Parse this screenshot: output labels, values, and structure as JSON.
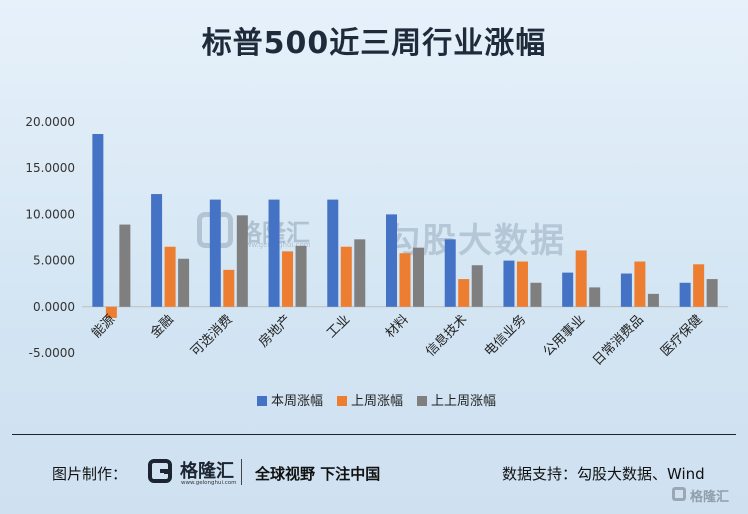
{
  "title": "标普500近三周行业涨幅",
  "watermark": {
    "logo_text": "格隆汇",
    "logo_sub": "www.gelonghui.com",
    "text": "勾股大数据"
  },
  "footer": {
    "credit_label": "图片制作：",
    "logo_text": "格隆汇",
    "logo_url": "www.gelonghui.com",
    "slogan": "全球视野 下注中国",
    "source": "数据支持：勾股大数据、Wind",
    "corner_text": "格隆汇"
  },
  "colors": {
    "series": [
      "#4472c4",
      "#ed7d31",
      "#7f7f7f"
    ]
  },
  "chart_data": {
    "type": "bar",
    "title": "标普500近三周行业涨幅",
    "categories": [
      "能源",
      "金融",
      "可选消费",
      "房地产",
      "工业",
      "材料",
      "信息技术",
      "电信业务",
      "公用事业",
      "日常消费品",
      "医疗保健"
    ],
    "series": [
      {
        "name": "本周涨幅",
        "values": [
          18.7,
          12.2,
          11.6,
          11.6,
          11.6,
          10.0,
          7.3,
          5.0,
          3.7,
          3.6,
          2.6
        ]
      },
      {
        "name": "上周涨幅",
        "values": [
          -1.2,
          6.5,
          4.0,
          6.0,
          6.5,
          5.8,
          3.0,
          4.9,
          6.1,
          4.9,
          4.6
        ]
      },
      {
        "name": "上上周涨幅",
        "values": [
          8.9,
          5.2,
          9.9,
          6.6,
          7.3,
          6.4,
          4.5,
          2.6,
          2.1,
          1.4,
          3.0
        ]
      }
    ],
    "yticks": [
      "20.0000",
      "15.0000",
      "10.0000",
      "5.0000",
      "0.0000",
      "-5.0000"
    ],
    "ytick_values": [
      20,
      15,
      10,
      5,
      0,
      -5
    ],
    "ylim": [
      -5,
      20
    ],
    "grid": false,
    "legend_position": "bottom"
  }
}
